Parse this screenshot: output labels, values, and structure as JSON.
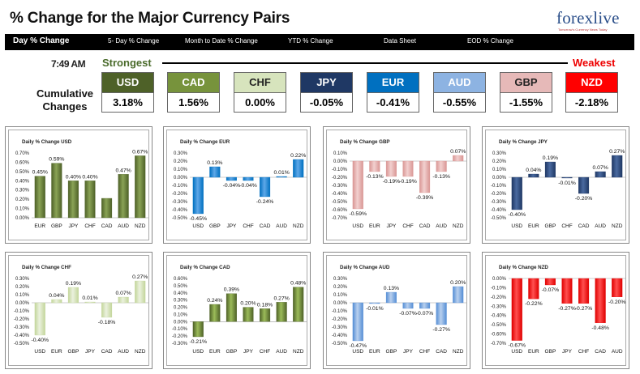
{
  "header": {
    "title": "% Change for the Major Currency Pairs",
    "logo_text": "forexlive",
    "logo_sub": "Tomorrow's Currency News Today"
  },
  "nav": {
    "items": [
      "Day % Change",
      "5- Day % Change",
      "Month to Date % Change",
      "YTD % Change",
      "Data Sheet",
      "EOD % Change"
    ]
  },
  "summary": {
    "time": "7:49 AM",
    "strongest_label": "Strongest",
    "weakest_label": "Weakest",
    "cumulative_label_line1": "Cumulative",
    "cumulative_label_line2": "Changes",
    "currencies": [
      {
        "code": "USD",
        "value": "3.18%",
        "color": "#4e6128"
      },
      {
        "code": "CAD",
        "value": "1.56%",
        "color": "#77933c"
      },
      {
        "code": "CHF",
        "value": "0.00%",
        "color": "#d7e4bd"
      },
      {
        "code": "JPY",
        "value": "-0.05%",
        "color": "#1f3864"
      },
      {
        "code": "EUR",
        "value": "-0.41%",
        "color": "#0070c0"
      },
      {
        "code": "AUD",
        "value": "-0.55%",
        "color": "#8db3e2"
      },
      {
        "code": "GBP",
        "value": "-1.55%",
        "color": "#e6b9b8"
      },
      {
        "code": "NZD",
        "value": "-2.18%",
        "color": "#ff0000"
      }
    ]
  },
  "chart_data": [
    {
      "type": "bar",
      "title": "Daily % Change USD",
      "categories": [
        "EUR",
        "GBP",
        "JPY",
        "CHF",
        "CAD",
        "AUD",
        "NZD"
      ],
      "values": [
        0.45,
        0.59,
        0.4,
        0.4,
        0.21,
        0.47,
        0.67
      ],
      "labels": [
        "0.45%",
        "0.59%",
        "0.40%",
        "0.40%",
        "",
        "0.47%",
        "0.67%"
      ],
      "yticks": [
        "0.70%",
        "0.60%",
        "0.50%",
        "0.40%",
        "0.30%",
        "0.20%",
        "0.10%",
        "0.00%"
      ],
      "ylim": [
        0,
        0.7
      ],
      "color": "#4e6128",
      "light": "#8aa356"
    },
    {
      "type": "bar",
      "title": "Daily % Change EUR",
      "categories": [
        "USD",
        "GBP",
        "JPY",
        "CHF",
        "CAD",
        "AUD",
        "NZD"
      ],
      "values": [
        -0.45,
        0.13,
        -0.04,
        -0.04,
        -0.24,
        0.01,
        0.22
      ],
      "labels": [
        "-0.45%",
        "0.13%",
        "-0.04%",
        "-0.04%",
        "-0.24%",
        "0.01%",
        "0.22%"
      ],
      "yticks": [
        "0.30%",
        "0.20%",
        "0.10%",
        "0.00%",
        "-0.10%",
        "-0.20%",
        "-0.30%",
        "-0.40%",
        "-0.50%"
      ],
      "ylim": [
        -0.5,
        0.3
      ],
      "color": "#0070c0",
      "light": "#5fa8e8"
    },
    {
      "type": "bar",
      "title": "Daily % Change GBP",
      "categories": [
        "USD",
        "EUR",
        "JPY",
        "CHF",
        "CAD",
        "AUD",
        "NZD"
      ],
      "values": [
        -0.59,
        -0.13,
        -0.19,
        -0.19,
        -0.39,
        -0.13,
        0.07
      ],
      "labels": [
        "-0.59%",
        "-0.13%",
        "-0.19%",
        "-0.19%",
        "-0.39%",
        "-0.13%",
        "0.07%"
      ],
      "yticks": [
        "0.10%",
        "0.00%",
        "-0.10%",
        "-0.20%",
        "-0.30%",
        "-0.40%",
        "-0.50%",
        "-0.60%",
        "-0.70%"
      ],
      "ylim": [
        -0.7,
        0.1
      ],
      "color": "#d99694",
      "light": "#f2d0cf"
    },
    {
      "type": "bar",
      "title": "Daily % Change JPY",
      "categories": [
        "USD",
        "EUR",
        "GBP",
        "CHF",
        "CAD",
        "AUD",
        "NZD"
      ],
      "values": [
        -0.4,
        0.04,
        0.19,
        -0.01,
        -0.2,
        0.07,
        0.27
      ],
      "labels": [
        "-0.40%",
        "0.04%",
        "0.19%",
        "-0.01%",
        "-0.20%",
        "0.07%",
        "0.27%"
      ],
      "yticks": [
        "0.30%",
        "0.20%",
        "0.10%",
        "0.00%",
        "-0.10%",
        "-0.20%",
        "-0.30%",
        "-0.40%",
        "-0.50%"
      ],
      "ylim": [
        -0.5,
        0.3
      ],
      "color": "#1f3864",
      "light": "#4a6aa0"
    },
    {
      "type": "bar",
      "title": "Daily % Change CHF",
      "categories": [
        "USD",
        "EUR",
        "GBP",
        "JPY",
        "CAD",
        "AUD",
        "NZD"
      ],
      "values": [
        -0.4,
        0.04,
        0.19,
        0.01,
        -0.18,
        0.07,
        0.27
      ],
      "labels": [
        "-0.40%",
        "0.04%",
        "0.19%",
        "0.01%",
        "-0.18%",
        "0.07%",
        "0.27%"
      ],
      "yticks": [
        "0.30%",
        "0.20%",
        "0.10%",
        "0.00%",
        "-0.10%",
        "-0.20%",
        "-0.30%",
        "-0.40%",
        "-0.50%"
      ],
      "ylim": [
        -0.5,
        0.3
      ],
      "color": "#c3d69b",
      "light": "#ebf1de"
    },
    {
      "type": "bar",
      "title": "Daily % Change CAD",
      "categories": [
        "USD",
        "EUR",
        "GBP",
        "JPY",
        "CHF",
        "AUD",
        "NZD"
      ],
      "values": [
        -0.21,
        0.24,
        0.39,
        0.2,
        0.18,
        0.27,
        0.48
      ],
      "labels": [
        "-0.21%",
        "0.24%",
        "0.39%",
        "0.20%",
        "0.18%",
        "0.27%",
        "0.48%"
      ],
      "yticks": [
        "0.60%",
        "0.50%",
        "0.40%",
        "0.30%",
        "0.20%",
        "0.10%",
        "0.00%",
        "-0.10%",
        "-0.20%",
        "-0.30%"
      ],
      "ylim": [
        -0.3,
        0.6
      ],
      "color": "#4f6228",
      "light": "#9bbb59"
    },
    {
      "type": "bar",
      "title": "Daily % Change AUD",
      "categories": [
        "USD",
        "EUR",
        "GBP",
        "JPY",
        "CHF",
        "CAD",
        "NZD"
      ],
      "values": [
        -0.47,
        -0.01,
        0.13,
        -0.07,
        -0.07,
        -0.27,
        0.2
      ],
      "labels": [
        "-0.47%",
        "-0.01%",
        "0.13%",
        "-0.07%",
        "-0.07%",
        "-0.27%",
        "0.20%"
      ],
      "yticks": [
        "0.30%",
        "0.20%",
        "0.10%",
        "0.00%",
        "-0.10%",
        "-0.20%",
        "-0.30%",
        "-0.40%",
        "-0.50%"
      ],
      "ylim": [
        -0.5,
        0.3
      ],
      "color": "#558ed5",
      "light": "#b9d0ee"
    },
    {
      "type": "bar",
      "title": "Daily % Change NZD",
      "categories": [
        "USD",
        "EUR",
        "GBP",
        "JPY",
        "CHF",
        "CAD",
        "AUD"
      ],
      "values": [
        -0.67,
        -0.22,
        -0.07,
        -0.27,
        -0.27,
        -0.48,
        -0.2
      ],
      "labels": [
        "-0.67%",
        "-0.22%",
        "-0.07%",
        "-0.27%",
        "-0.27%",
        "-0.48%",
        "-0.20%"
      ],
      "yticks": [
        "0.00%",
        "-0.10%",
        "-0.20%",
        "-0.30%",
        "-0.40%",
        "-0.50%",
        "-0.60%",
        "-0.70%"
      ],
      "ylim": [
        -0.7,
        0
      ],
      "color": "#e00000",
      "light": "#ff5050"
    }
  ]
}
